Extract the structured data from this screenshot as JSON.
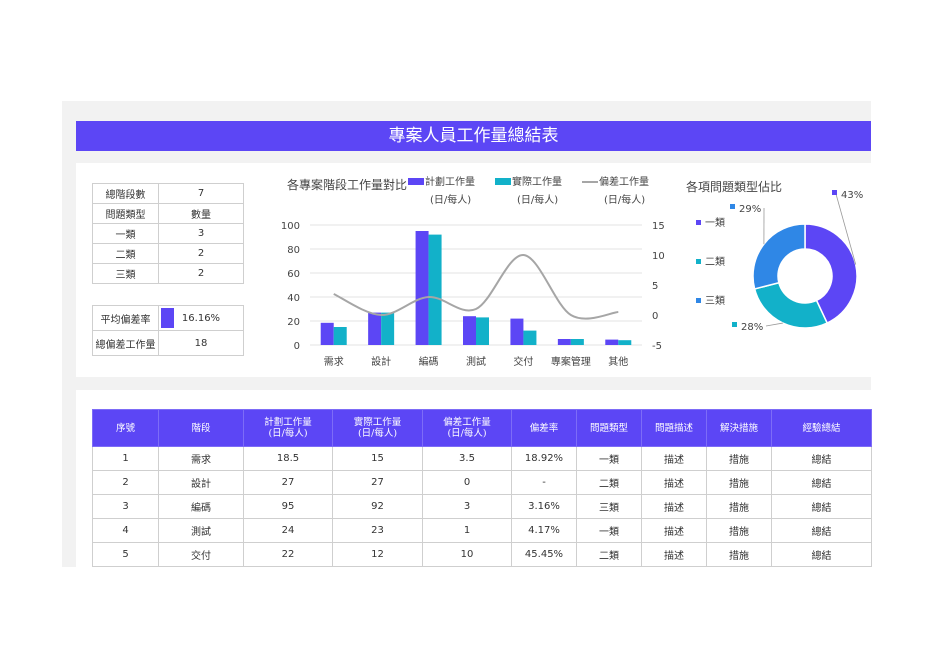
{
  "header": {
    "title": "專案人員工作量總結表"
  },
  "stats": [
    {
      "label": "總階段數",
      "value": "7"
    },
    {
      "label": "問題類型",
      "value": "數量"
    },
    {
      "label": "一類",
      "value": "3"
    },
    {
      "label": "二類",
      "value": "2"
    },
    {
      "label": "三類",
      "value": "2"
    }
  ],
  "summary": {
    "avg_label": "平均偏差率",
    "avg_value": "16.16%",
    "avg_fill": 0.1616,
    "total_label": "總偏差工作量",
    "total_value": "18"
  },
  "colors": {
    "accent": "#5c46f5",
    "teal": "#12b1c9",
    "deviation": "#a6a6a6",
    "blue": "#2f87e6"
  },
  "chart_data": [
    {
      "type": "bar",
      "title": "各專案階段工作量對比",
      "categories": [
        "需求",
        "設計",
        "編碼",
        "測試",
        "交付",
        "專案管理",
        "其他"
      ],
      "series": [
        {
          "name": "計劃工作量",
          "name2": "(日/每人)",
          "values": [
            18.5,
            27,
            95,
            24,
            22,
            5,
            4.5
          ]
        },
        {
          "name": "實際工作量",
          "name2": "(日/每人)",
          "values": [
            15,
            27,
            92,
            23,
            12,
            5,
            4
          ]
        },
        {
          "name": "偏差工作量",
          "name2": "(日/每人)",
          "values": [
            3.5,
            0,
            3,
            1,
            10,
            0,
            0.5
          ],
          "type": "line",
          "axis": "right"
        }
      ],
      "ylim": [
        0,
        100
      ],
      "y_ticks": [
        "100",
        "80",
        "60",
        "40",
        "20",
        "0"
      ],
      "y2lim": [
        -5,
        15
      ],
      "y2_ticks": [
        "15",
        "10",
        "5",
        "0",
        "-5"
      ],
      "grid": true
    },
    {
      "type": "pie",
      "title": "各項問題類型佔比",
      "legend": [
        "一類",
        "二類",
        "三類"
      ],
      "values": [
        43,
        28,
        29
      ],
      "labels": [
        "43%",
        "28%",
        "29%"
      ]
    }
  ],
  "table": {
    "headers": [
      "序號",
      "階段",
      "計劃工作量",
      "實際工作量",
      "偏差工作量",
      "偏差率",
      "問題類型",
      "問題描述",
      "解決措施",
      "經驗總結"
    ],
    "unit": "(日/每人)",
    "rows": [
      [
        "1",
        "需求",
        "18.5",
        "15",
        "3.5",
        "18.92%",
        "一類",
        "描述",
        "措施",
        "總結"
      ],
      [
        "2",
        "設計",
        "27",
        "27",
        "0",
        "-",
        "二類",
        "描述",
        "措施",
        "總結"
      ],
      [
        "3",
        "編碼",
        "95",
        "92",
        "3",
        "3.16%",
        "三類",
        "描述",
        "措施",
        "總結"
      ],
      [
        "4",
        "測試",
        "24",
        "23",
        "1",
        "4.17%",
        "一類",
        "描述",
        "措施",
        "總結"
      ],
      [
        "5",
        "交付",
        "22",
        "12",
        "10",
        "45.45%",
        "二類",
        "描述",
        "措施",
        "總結"
      ]
    ]
  }
}
